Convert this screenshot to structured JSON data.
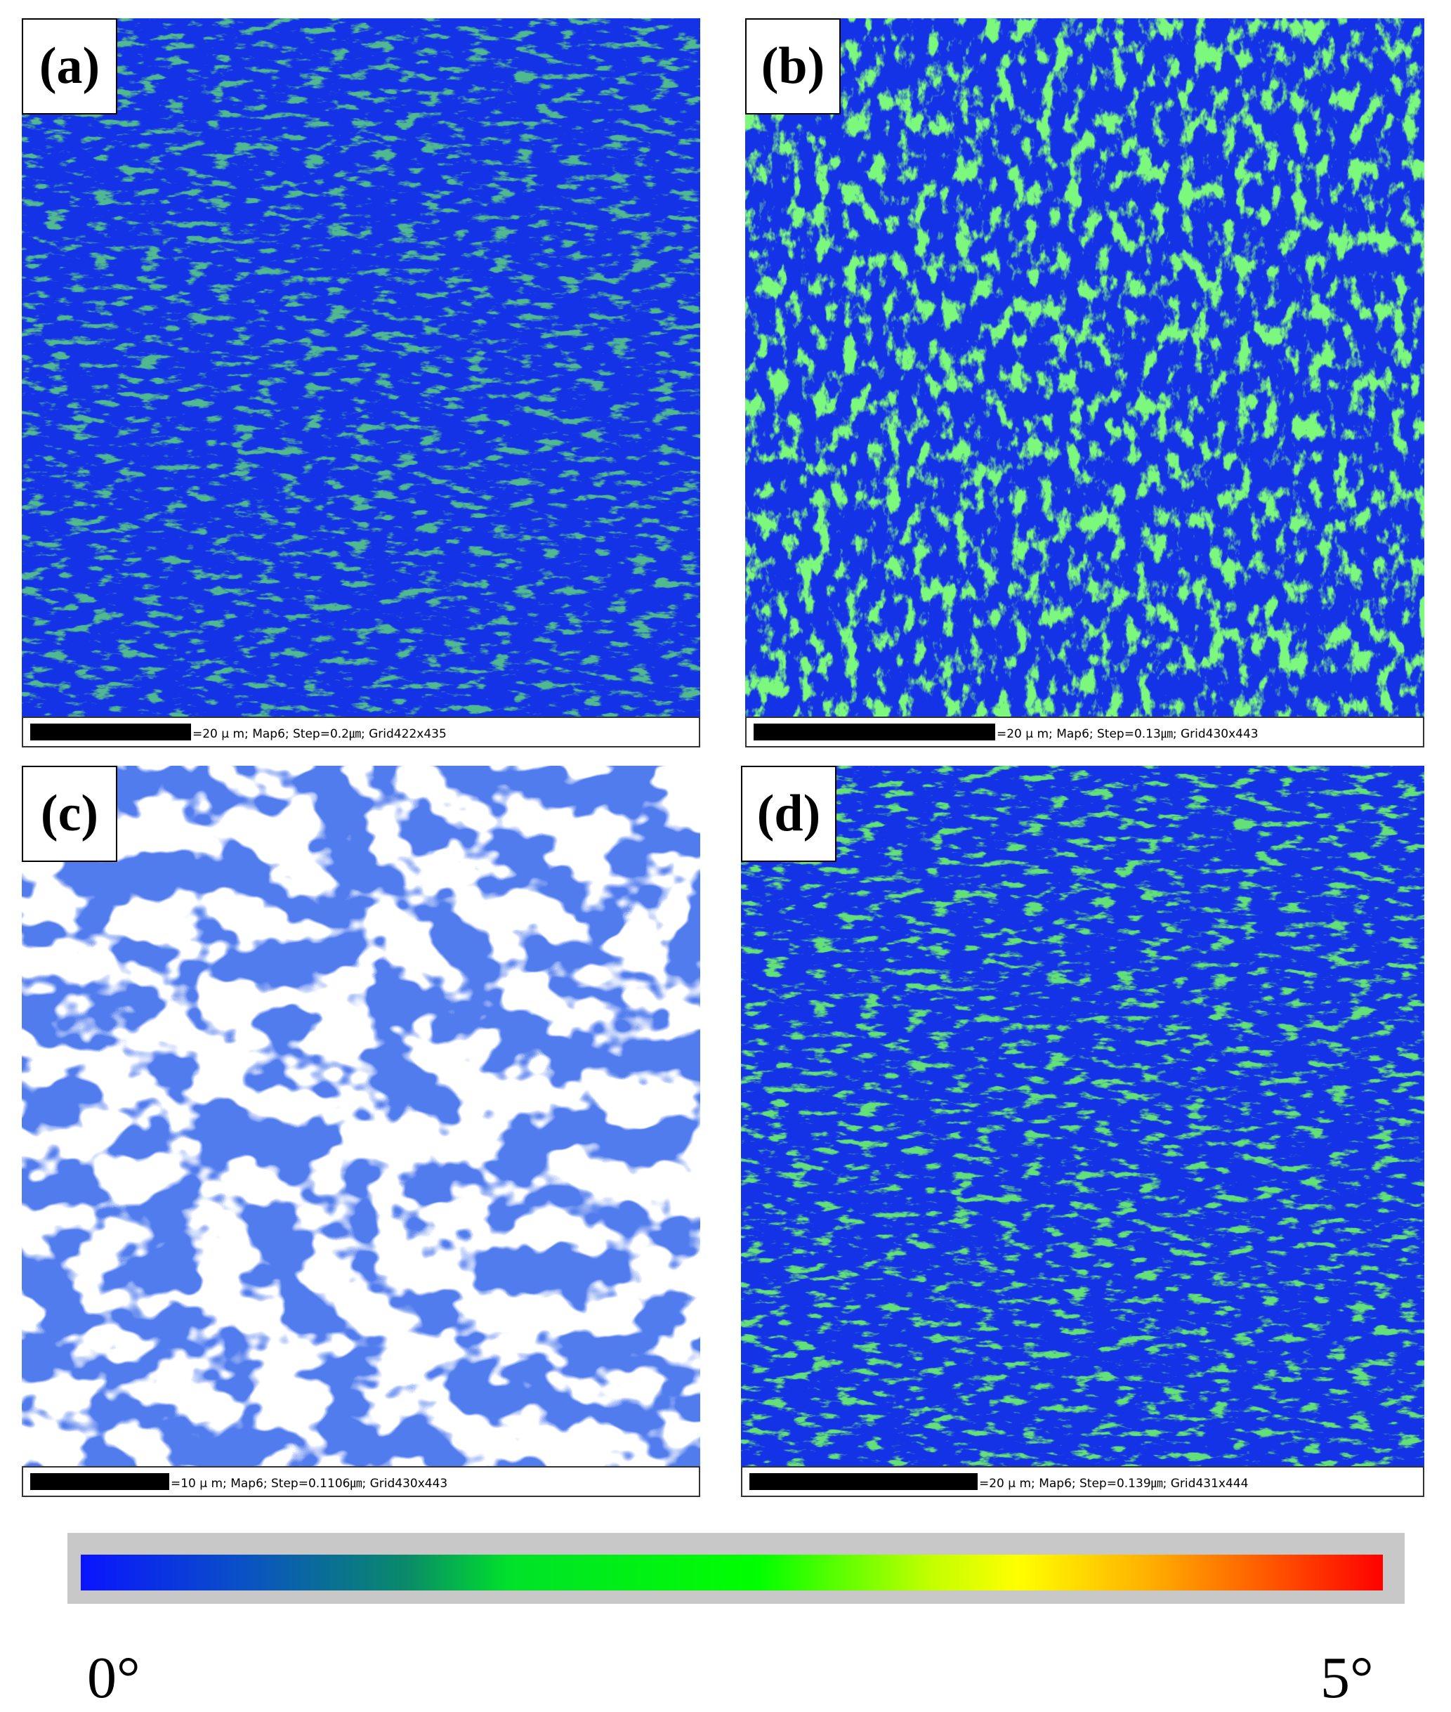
{
  "panels": [
    {
      "label": "(a)",
      "caption": "=20 μ m; Map6; Step=0.2㎛; Grid422x435"
    },
    {
      "label": "(b)",
      "caption": "=20 μ m; Map6; Step=0.13㎛; Grid430x443"
    },
    {
      "label": "(c)",
      "caption": "=10 μ m; Map6; Step=0.1106㎛; Grid430x443"
    },
    {
      "label": "(d)",
      "caption": "=20 μ m; Map6; Step=0.139㎛; Grid431x444"
    }
  ],
  "colorbar": {
    "min_label": "0°",
    "max_label": "5°"
  }
}
